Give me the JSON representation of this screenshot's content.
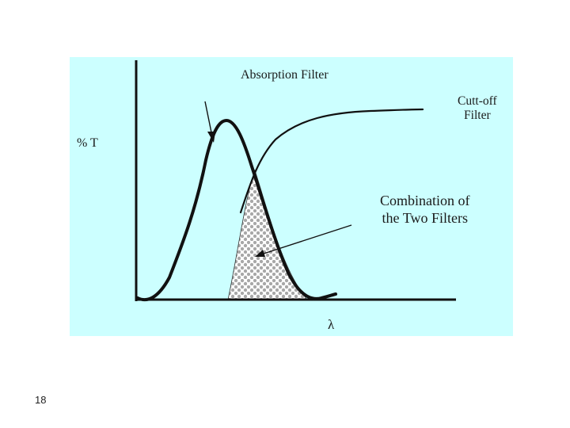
{
  "figure": {
    "background_color": "#ccffff",
    "curve_color": "#111111",
    "fill_pattern_color": "#a8a8a8",
    "title": "Absorption Filter",
    "cutoff_label": [
      "Cutt-off",
      "Filter"
    ],
    "combination_label": [
      "Combination of",
      "the Two Filters"
    ],
    "y_axis_label": "% T",
    "x_axis_label": "λ"
  },
  "slide": {
    "number": "18"
  }
}
